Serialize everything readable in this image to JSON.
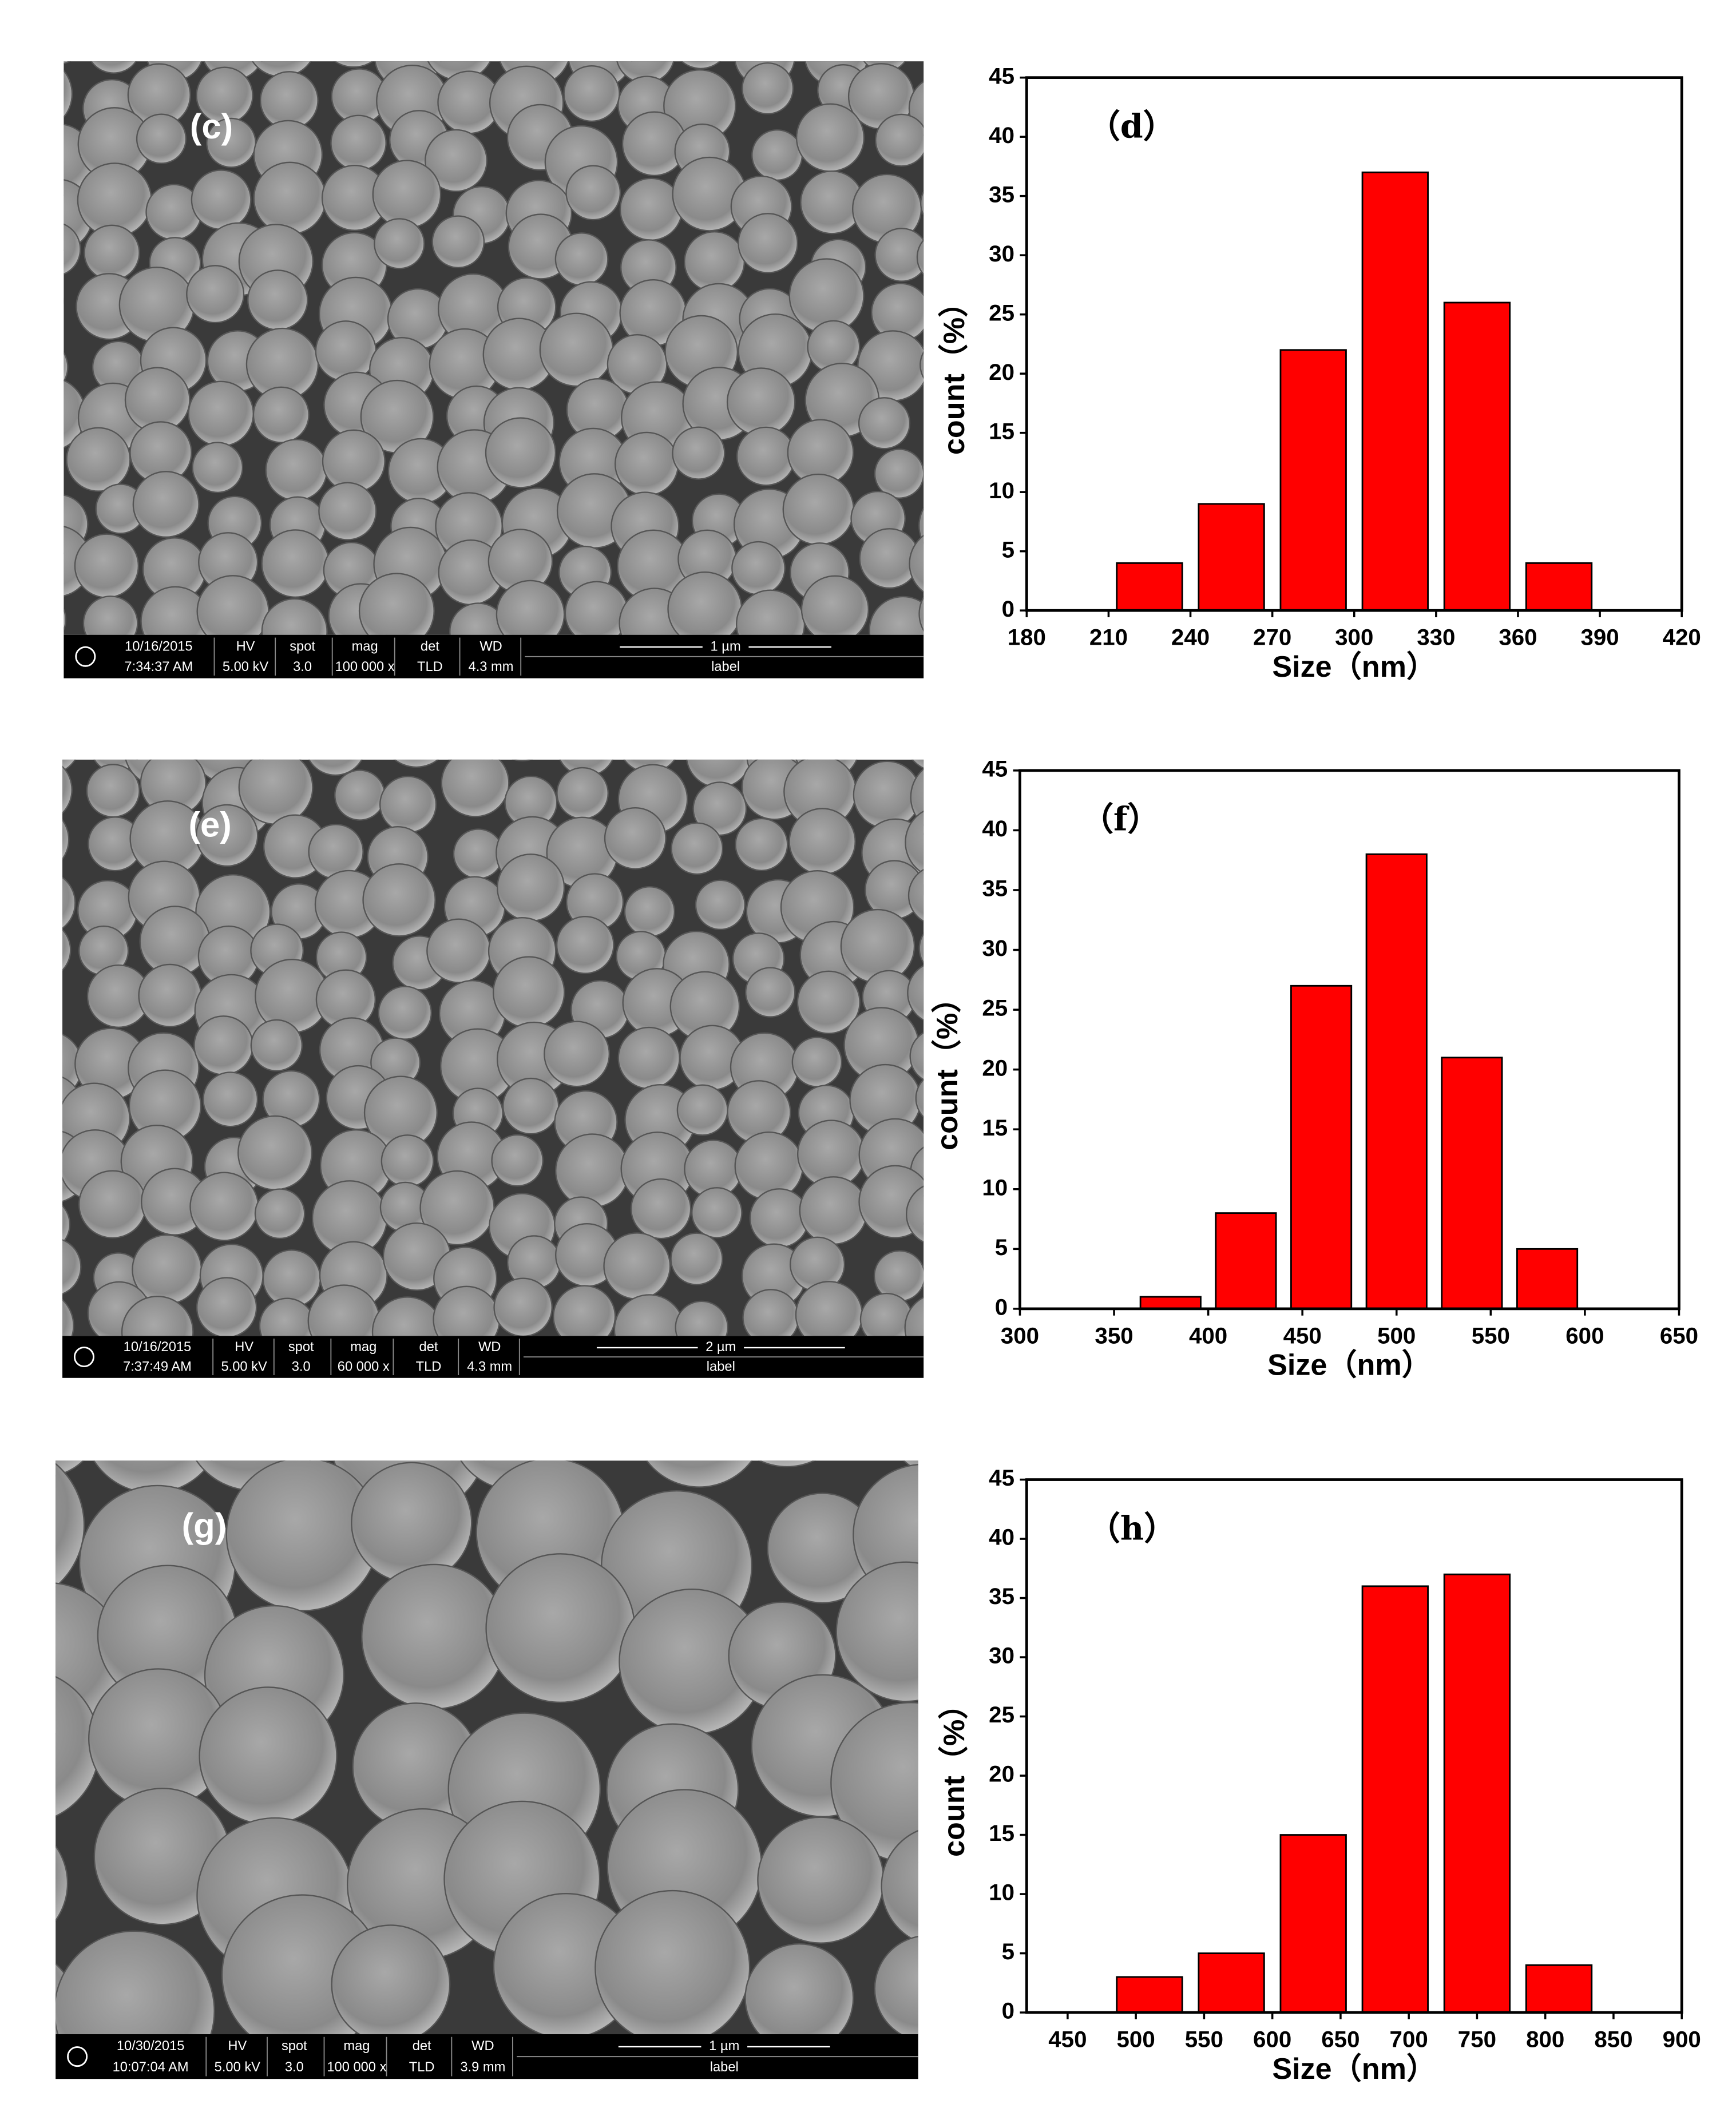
{
  "chart_data": [
    {
      "type": "bar",
      "annotation": "（d）",
      "x_label": "Size（nm）",
      "y_label": "count（%）",
      "color": "#ff0000",
      "x": [
        225,
        255,
        285,
        315,
        345,
        375
      ],
      "values": [
        4,
        9,
        22,
        37,
        26,
        4
      ],
      "xlim": [
        180,
        420
      ],
      "xticks": [
        180,
        210,
        240,
        270,
        300,
        330,
        360,
        390,
        420
      ],
      "ylim": [
        0,
        45
      ],
      "yticks": [
        0,
        5,
        10,
        15,
        20,
        25,
        30,
        35,
        40,
        45
      ]
    },
    {
      "type": "bar",
      "annotation": "（f）",
      "x_label": "Size（nm）",
      "y_label": "count（%）",
      "color": "#ff0000",
      "x": [
        380,
        420,
        460,
        500,
        540,
        580
      ],
      "values": [
        1,
        8,
        27,
        38,
        21,
        5
      ],
      "xlim": [
        300,
        650
      ],
      "xticks": [
        300,
        350,
        400,
        450,
        500,
        550,
        600,
        650
      ],
      "ylim": [
        0,
        45
      ],
      "yticks": [
        0,
        5,
        10,
        15,
        20,
        25,
        30,
        35,
        40,
        45
      ]
    },
    {
      "type": "bar",
      "annotation": "（h）",
      "x_label": "Size（nm）",
      "y_label": "count（%）",
      "color": "#ff0000",
      "x": [
        510,
        570,
        630,
        690,
        750,
        810
      ],
      "values": [
        3,
        5,
        15,
        36,
        37,
        4
      ],
      "xlim": [
        420,
        900
      ],
      "xticks": [
        450,
        500,
        550,
        600,
        650,
        700,
        750,
        800,
        850,
        900
      ],
      "ylim": [
        0,
        45
      ],
      "yticks": [
        0,
        5,
        10,
        15,
        20,
        25,
        30,
        35,
        40,
        45
      ]
    }
  ],
  "images": [
    {
      "label": "(c)",
      "info": {
        "date": "10/16/2015",
        "time": "7:34:37 AM",
        "hv_label": "HV",
        "hv": "5.00 kV",
        "spot_label": "spot",
        "spot": "3.0",
        "mag_label": "mag",
        "mag": "100 000 x",
        "det_label": "det",
        "det": "TLD",
        "wd_label": "WD",
        "wd": "4.3 mm",
        "scale": "1 µm",
        "caption": "label"
      }
    },
    {
      "label": "(e)",
      "info": {
        "date": "10/16/2015",
        "time": "7:37:49 AM",
        "hv_label": "HV",
        "hv": "5.00 kV",
        "spot_label": "spot",
        "spot": "3.0",
        "mag_label": "mag",
        "mag": "60 000 x",
        "det_label": "det",
        "det": "TLD",
        "wd_label": "WD",
        "wd": "4.3 mm",
        "scale": "2 µm",
        "caption": "label"
      }
    },
    {
      "label": "(g)",
      "info": {
        "date": "10/30/2015",
        "time": "10:07:04 AM",
        "hv_label": "HV",
        "hv": "5.00 kV",
        "spot_label": "spot",
        "spot": "3.0",
        "mag_label": "mag",
        "mag": "100 000 x",
        "det_label": "det",
        "det": "TLD",
        "wd_label": "WD",
        "wd": "3.9 mm",
        "scale": "1 µm",
        "caption": "label"
      }
    }
  ]
}
